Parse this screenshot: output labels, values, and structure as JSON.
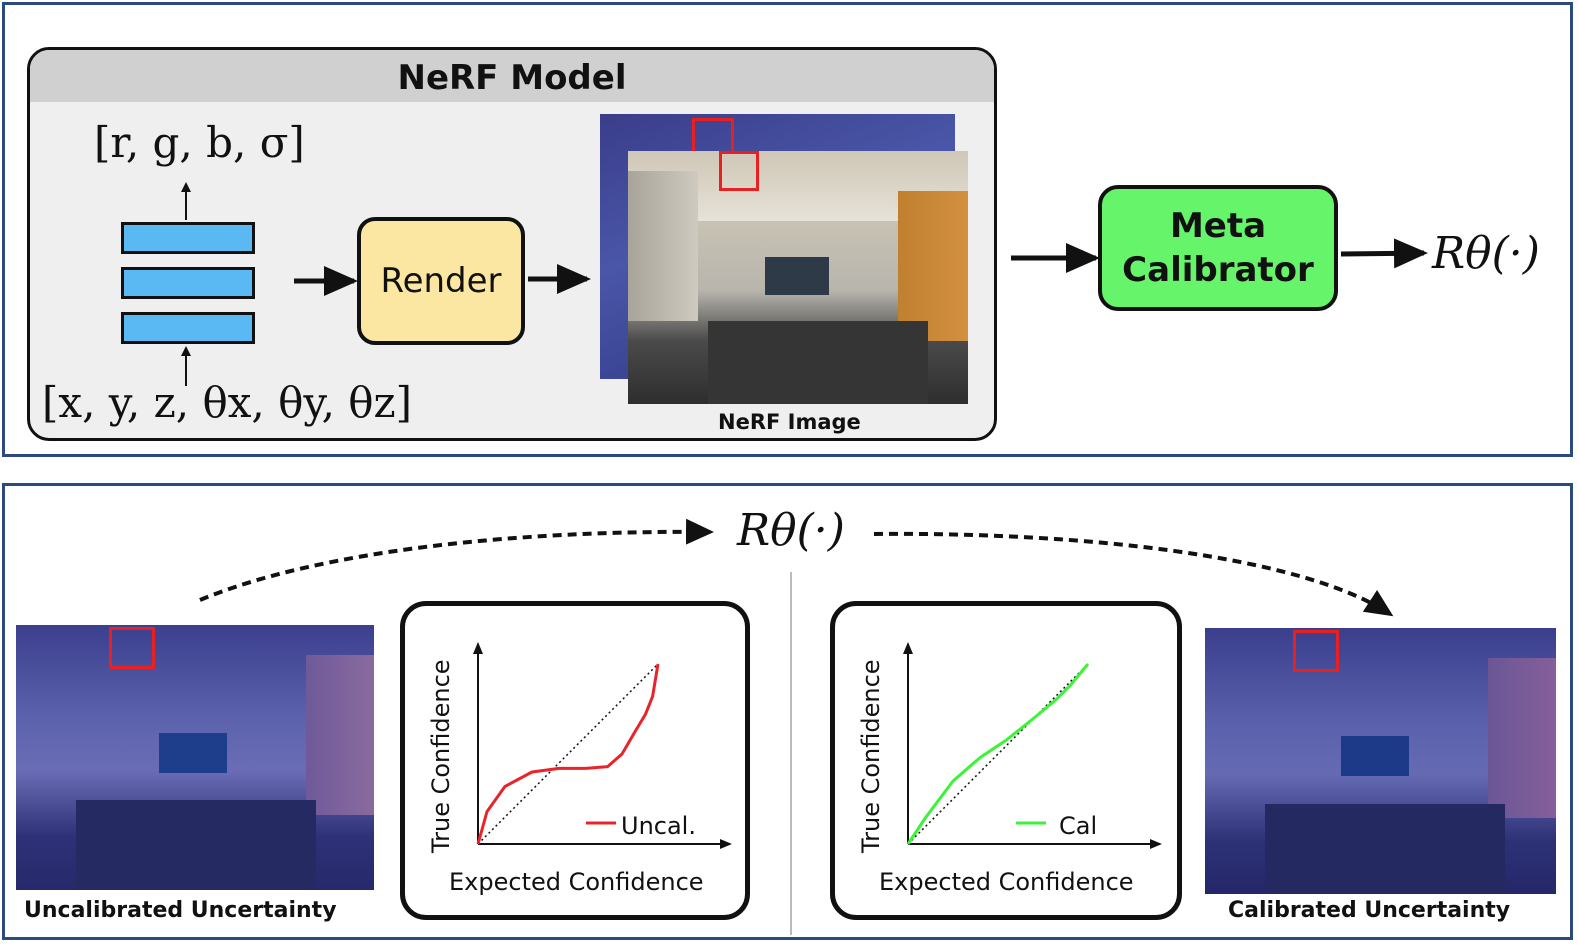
{
  "nerf_model": {
    "title": "NeRF Model",
    "output_label": "[r, g, b, σ]",
    "input_label": "[x, y, z, θx, θy, θz]",
    "render_label": "Render",
    "image_label": "NeRF Image"
  },
  "meta_calibrator": {
    "label_line1": "Meta",
    "label_line2": "Calibrator"
  },
  "r_theta_top": "Rθ(·)",
  "r_theta_bottom": "Rθ(·)",
  "bottom": {
    "uncal_label": "Uncalibrated Uncertainty",
    "cal_label": "Calibrated Uncertainty"
  },
  "chart_data": [
    {
      "type": "line",
      "xlabel": "Expected Confidence",
      "ylabel": "True Confidence",
      "series": [
        {
          "name": "Uncal.",
          "color": "#e8242a",
          "x": [
            0,
            0.05,
            0.15,
            0.3,
            0.45,
            0.6,
            0.72,
            0.8,
            0.87,
            0.93,
            0.97,
            1.0
          ],
          "y": [
            0,
            0.18,
            0.32,
            0.4,
            0.42,
            0.42,
            0.43,
            0.5,
            0.62,
            0.72,
            0.82,
            1.0
          ]
        }
      ],
      "reference": "diagonal"
    },
    {
      "type": "line",
      "xlabel": "Expected Confidence",
      "ylabel": "True Confidence",
      "series": [
        {
          "name": "Cal",
          "color": "#3af535",
          "x": [
            0,
            0.1,
            0.25,
            0.4,
            0.55,
            0.7,
            0.82,
            0.9,
            1.0
          ],
          "y": [
            0,
            0.15,
            0.35,
            0.48,
            0.58,
            0.7,
            0.8,
            0.88,
            1.0
          ]
        }
      ],
      "reference": "diagonal"
    }
  ]
}
